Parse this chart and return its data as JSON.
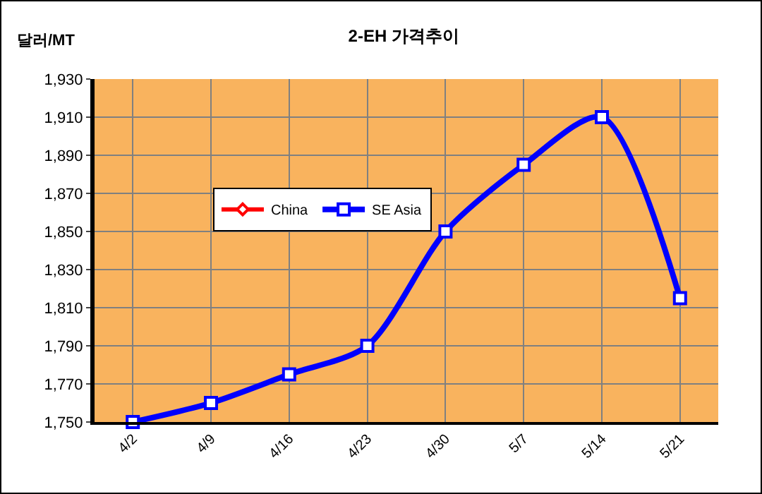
{
  "chart_data": {
    "type": "line",
    "title": "2-EH 가격추이",
    "ylabel": "달러/MT",
    "categories": [
      "4/2",
      "4/9",
      "4/16",
      "4/23",
      "4/30",
      "5/7",
      "5/14",
      "5/21"
    ],
    "series": [
      {
        "name": "China",
        "color": "#ff0000",
        "values": [
          null,
          null,
          null,
          null,
          null,
          null,
          null,
          null
        ]
      },
      {
        "name": "SE Asia",
        "color": "#0000ff",
        "values": [
          1750,
          1760,
          1775,
          1790,
          1850,
          1885,
          1910,
          1815
        ]
      }
    ],
    "ylim": [
      1750,
      1930
    ],
    "yticks": [
      {
        "value": 1750,
        "label": "1,750"
      },
      {
        "value": 1770,
        "label": "1,770"
      },
      {
        "value": 1790,
        "label": "1,790"
      },
      {
        "value": 1810,
        "label": "1,810"
      },
      {
        "value": 1830,
        "label": "1,830"
      },
      {
        "value": 1850,
        "label": "1,850"
      },
      {
        "value": 1870,
        "label": "1,870"
      },
      {
        "value": 1890,
        "label": "1,890"
      },
      {
        "value": 1910,
        "label": "1,910"
      },
      {
        "value": 1930,
        "label": "1,930"
      }
    ],
    "grid": true,
    "legend": "center",
    "marker": "square",
    "line_style": "solid"
  }
}
